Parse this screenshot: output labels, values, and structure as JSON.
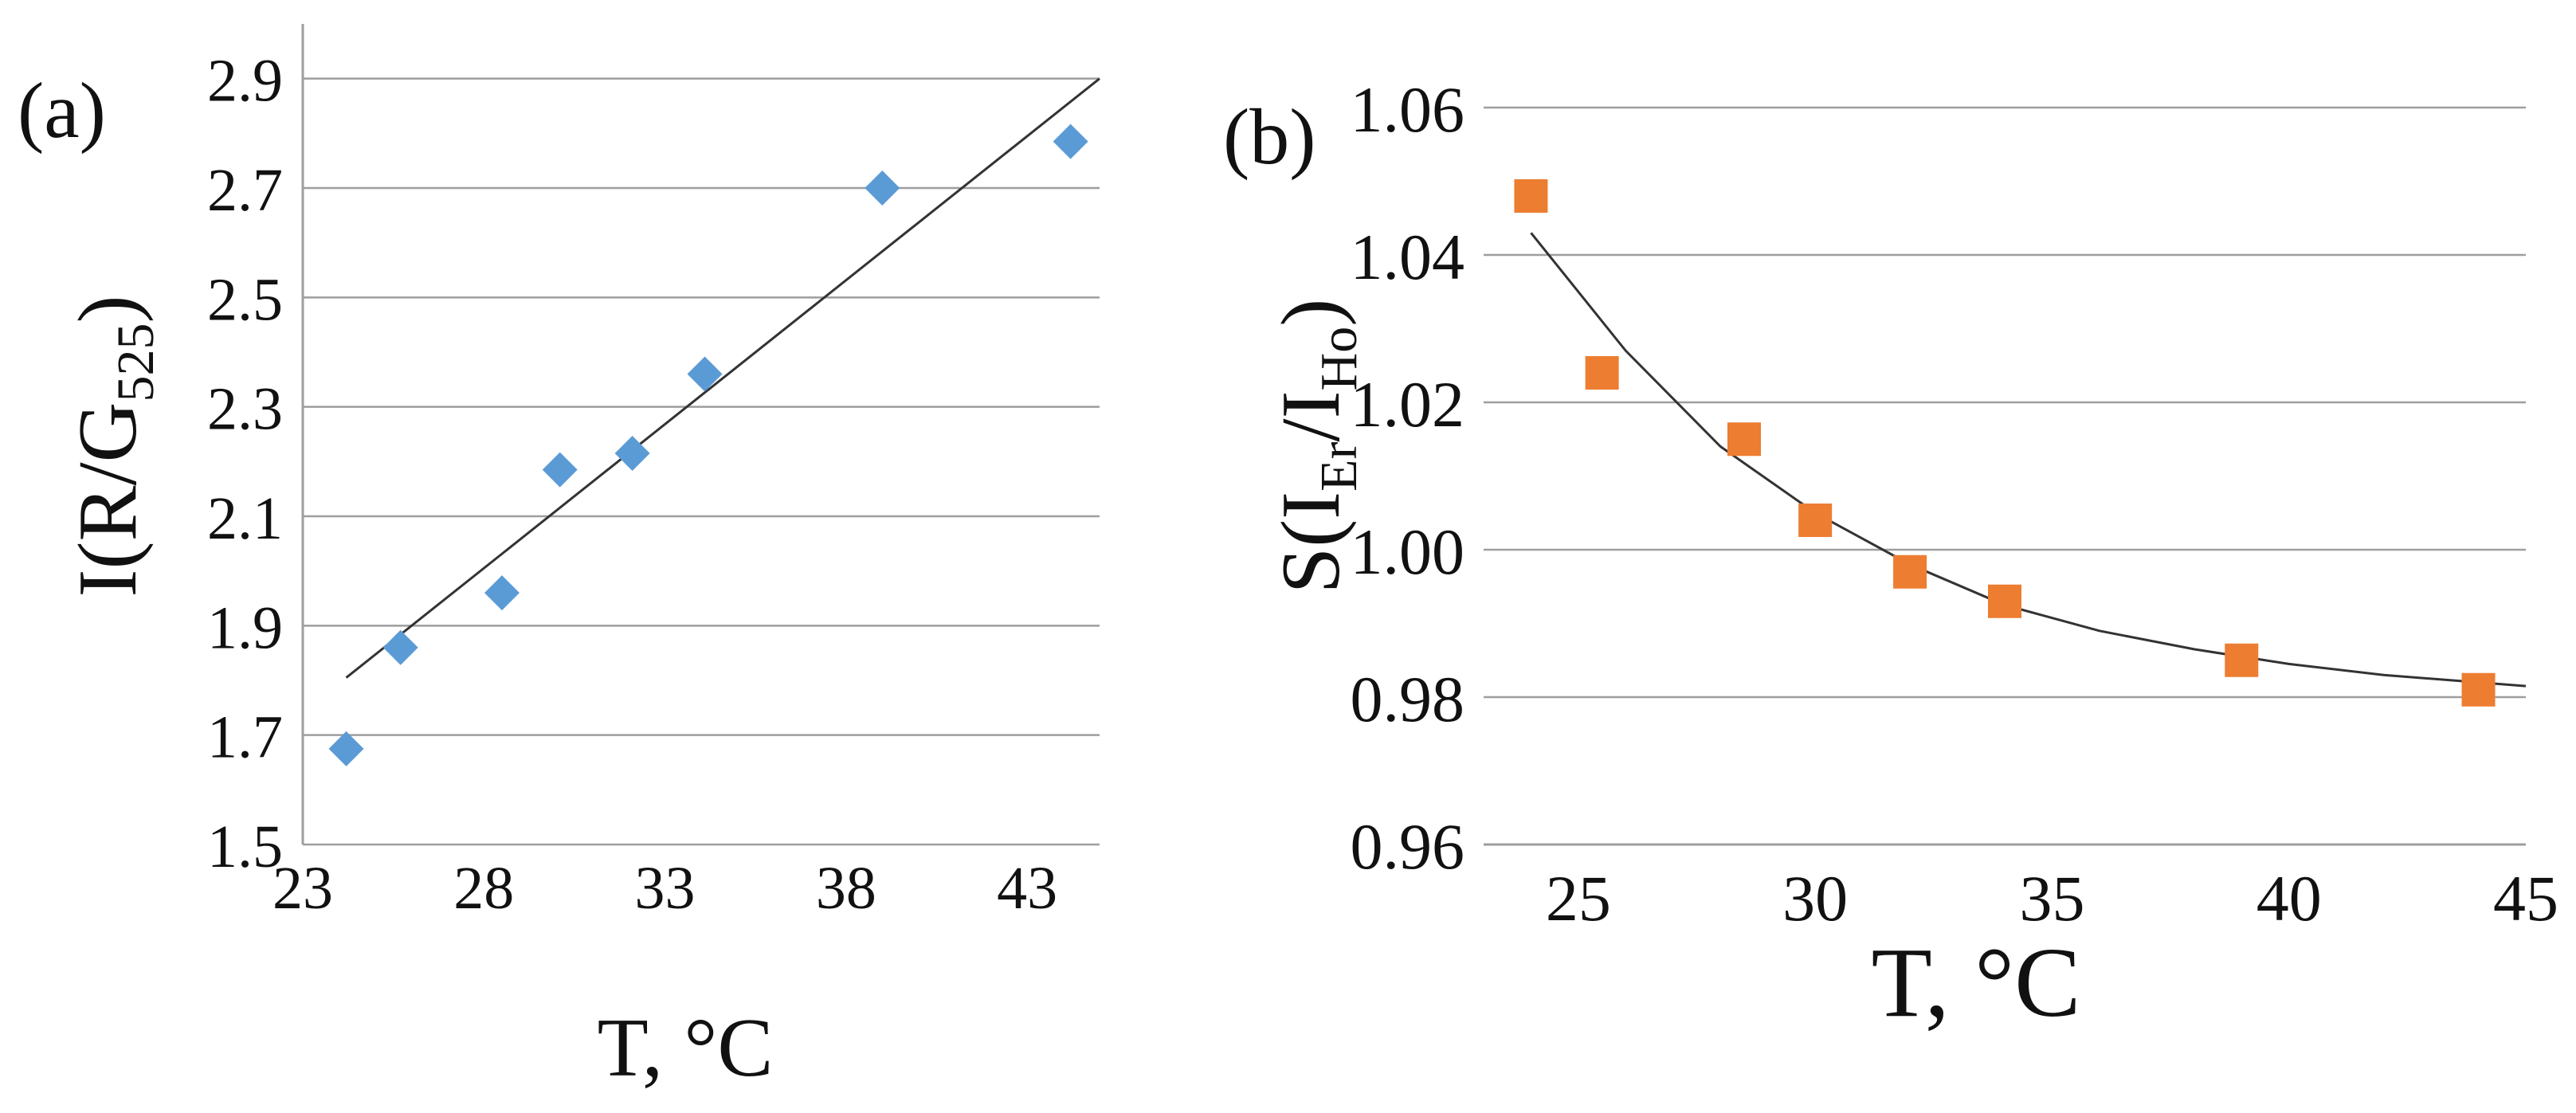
{
  "colors": {
    "panel_a_marker": "#5B9BD5",
    "panel_b_marker": "#ED7D31",
    "fit_line": "#333333",
    "grid": "#9E9E9E"
  },
  "chart_data": [
    {
      "panel_label": "(a)",
      "type": "scatter",
      "marker": "diamond",
      "xlabel": "T, °C",
      "ylabel_parts": {
        "main": "I(R/G",
        "sub": "525",
        "close": ")"
      },
      "xlim": [
        23,
        45
      ],
      "ylim": [
        1.5,
        3.0
      ],
      "xticks": [
        "23",
        "28",
        "33",
        "38",
        "43"
      ],
      "yticks": [
        "1.5",
        "1.7",
        "1.9",
        "2.1",
        "2.3",
        "2.5",
        "2.7",
        "2.9"
      ],
      "points": [
        {
          "x": 24.2,
          "y": 1.675
        },
        {
          "x": 25.7,
          "y": 1.86
        },
        {
          "x": 28.5,
          "y": 1.96
        },
        {
          "x": 30.1,
          "y": 2.185
        },
        {
          "x": 32.1,
          "y": 2.215
        },
        {
          "x": 34.1,
          "y": 2.36
        },
        {
          "x": 39.0,
          "y": 2.7
        },
        {
          "x": 44.2,
          "y": 2.785
        }
      ],
      "fit": {
        "type": "linear",
        "x_start": 24.2,
        "y_start": 1.805,
        "x_end": 45,
        "y_end": 2.9
      }
    },
    {
      "panel_label": "(b)",
      "type": "scatter",
      "marker": "square",
      "xlabel": "T, °C",
      "ylabel_parts": {
        "main": "S(I",
        "sub1": "Er",
        "mid": "/I",
        "sub2": "Ho",
        "close": ")"
      },
      "xlim": [
        23,
        45
      ],
      "ylim": [
        0.96,
        1.06
      ],
      "xticks": [
        "25",
        "30",
        "35",
        "40",
        "45"
      ],
      "yticks": [
        "0.96",
        "0.98",
        "1.00",
        "1.02",
        "1.04",
        "1.06"
      ],
      "points": [
        {
          "x": 24.0,
          "y": 1.048
        },
        {
          "x": 25.5,
          "y": 1.024
        },
        {
          "x": 28.5,
          "y": 1.015
        },
        {
          "x": 30.0,
          "y": 1.004
        },
        {
          "x": 32.0,
          "y": 0.997
        },
        {
          "x": 34.0,
          "y": 0.993
        },
        {
          "x": 39.0,
          "y": 0.985
        },
        {
          "x": 44.0,
          "y": 0.981
        }
      ],
      "fit": {
        "type": "exponential-decay",
        "curve": [
          {
            "x": 24.0,
            "y": 1.043
          },
          {
            "x": 26.0,
            "y": 1.027
          },
          {
            "x": 28.0,
            "y": 1.014
          },
          {
            "x": 30.0,
            "y": 1.005
          },
          {
            "x": 32.0,
            "y": 0.998
          },
          {
            "x": 34.0,
            "y": 0.9925
          },
          {
            "x": 36.0,
            "y": 0.989
          },
          {
            "x": 38.0,
            "y": 0.9865
          },
          {
            "x": 40.0,
            "y": 0.9845
          },
          {
            "x": 42.0,
            "y": 0.983
          },
          {
            "x": 45.0,
            "y": 0.9815
          }
        ]
      }
    }
  ]
}
